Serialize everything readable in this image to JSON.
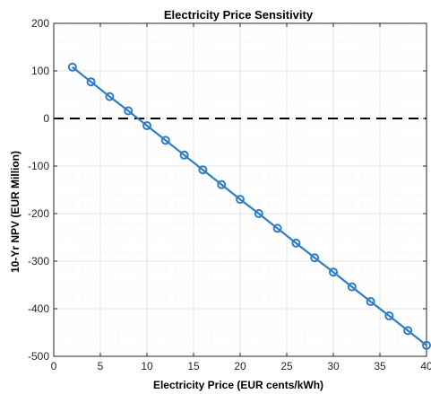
{
  "chart_data": {
    "type": "line",
    "title": "Electricity Price Sensitivity",
    "xlabel": "Electricity Price (EUR cents/kWh)",
    "ylabel": "10-Yr NPV (EUR Million)",
    "xlim": [
      0,
      40
    ],
    "ylim": [
      -500,
      200
    ],
    "xticks": [
      0,
      5,
      10,
      15,
      20,
      25,
      30,
      35,
      40
    ],
    "yticks": [
      200,
      100,
      0,
      -100,
      -200,
      -300,
      -400,
      -500
    ],
    "xtick_labels": [
      "0",
      "5",
      "10",
      "15",
      "20",
      "25",
      "30",
      "35",
      "40"
    ],
    "ytick_labels": [
      "200",
      "100",
      "0",
      "-100",
      "-200",
      "-300",
      "-400",
      "-500"
    ],
    "grid": true,
    "minor_grid": true,
    "series": [
      {
        "color": "#2f7dc4",
        "marker": "circle",
        "x": [
          2,
          4,
          6,
          8,
          10,
          12,
          14,
          16,
          18,
          20,
          22,
          24,
          26,
          28,
          30,
          32,
          34,
          36,
          38,
          40
        ],
        "y": [
          108,
          77,
          46,
          16,
          -15,
          -46,
          -77,
          -108,
          -139,
          -170,
          -200,
          -231,
          -262,
          -293,
          -323,
          -354,
          -385,
          -415,
          -446,
          -477
        ]
      }
    ],
    "reference_line": {
      "y": 0,
      "style": "dashed",
      "color": "#000000"
    }
  }
}
